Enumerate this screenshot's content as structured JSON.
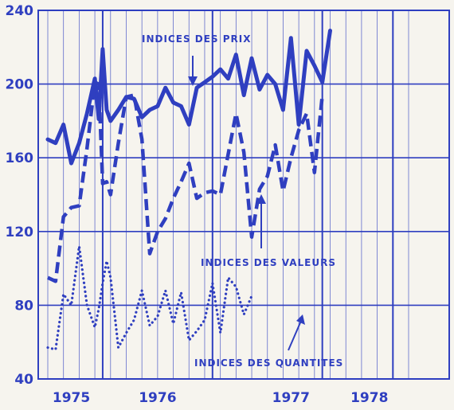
{
  "chart_data": {
    "type": "line",
    "ylim": [
      40,
      240
    ],
    "y_ticks": [
      40,
      80,
      120,
      160,
      200,
      240
    ],
    "x_labels": [
      "1975",
      "1976",
      "1977",
      "1978"
    ],
    "x_range": [
      0,
      46
    ],
    "x_label_positions": [
      3,
      14,
      31,
      41
    ],
    "year_boundaries": [
      7,
      21,
      35,
      44
    ],
    "grid": true,
    "color": "#2f3fc0",
    "series": [
      {
        "name": "INDICES DES PRIX",
        "style": "solid",
        "x": [
          0,
          1,
          2,
          3,
          4,
          5,
          6,
          6.5,
          7,
          7.5,
          8,
          9,
          10,
          11,
          12,
          13,
          14,
          15,
          16,
          17,
          18,
          19,
          20,
          21,
          22,
          23,
          24,
          25,
          26,
          27,
          28,
          29,
          30,
          31,
          32,
          33,
          34,
          35,
          36,
          37,
          38,
          39,
          40,
          41,
          42,
          43,
          44
        ],
        "values": [
          170,
          168,
          178,
          157,
          168,
          184,
          203,
          181,
          219,
          186,
          180,
          186,
          193,
          192,
          182,
          186,
          188,
          198,
          190,
          188,
          178,
          198,
          201,
          204,
          208,
          203,
          216,
          194,
          214,
          197,
          205,
          200,
          186,
          225,
          178,
          218,
          210,
          201,
          229,
          null,
          null,
          null,
          null,
          null,
          null,
          null,
          null
        ]
      },
      {
        "name": "INDICES DES VALEURS",
        "style": "dashed",
        "x": [
          0,
          1,
          2,
          3,
          4,
          5,
          6,
          6.5,
          7,
          7.5,
          8,
          9,
          10,
          11,
          12,
          13,
          14,
          15,
          16,
          17,
          18,
          19,
          20,
          21,
          22,
          23,
          24,
          25,
          26,
          27,
          28,
          29,
          30,
          31,
          32,
          33,
          34,
          35,
          36,
          37,
          38,
          39,
          40,
          41,
          42,
          43,
          44
        ],
        "values": [
          95,
          93,
          128,
          133,
          134,
          165,
          201,
          200,
          146,
          147,
          140,
          168,
          193,
          194,
          170,
          108,
          120,
          127,
          138,
          147,
          157,
          138,
          141,
          142,
          140,
          162,
          184,
          163,
          117,
          143,
          150,
          167,
          142,
          160,
          175,
          184,
          152,
          194,
          null,
          null,
          null,
          null,
          null,
          null,
          null,
          null,
          null
        ]
      },
      {
        "name": "INDICES DES QUANTITES",
        "style": "dotted",
        "x": [
          0,
          1,
          2,
          3,
          4,
          5,
          6,
          6.5,
          7,
          7.5,
          8,
          9,
          10,
          11,
          12,
          13,
          14,
          15,
          16,
          17,
          18,
          19,
          20,
          21,
          22,
          23,
          24,
          25,
          26,
          27,
          28,
          29,
          30,
          31,
          32,
          33,
          34,
          35,
          36,
          37,
          38,
          39,
          40,
          41,
          42,
          43,
          44
        ],
        "values": [
          57,
          56,
          86,
          80,
          112,
          80,
          68,
          78,
          92,
          104,
          95,
          57,
          65,
          72,
          88,
          69,
          74,
          88,
          70,
          87,
          61,
          66,
          72,
          92,
          65,
          95,
          90,
          75,
          85,
          null,
          null,
          null,
          null,
          null,
          null,
          null,
          null,
          null,
          null,
          null,
          null,
          null,
          null,
          null,
          null,
          null,
          null
        ]
      }
    ],
    "annotations": [
      "INDICES DES PRIX",
      "INDICES DES VALEURS",
      "INDICES DES QUANTITES"
    ]
  }
}
